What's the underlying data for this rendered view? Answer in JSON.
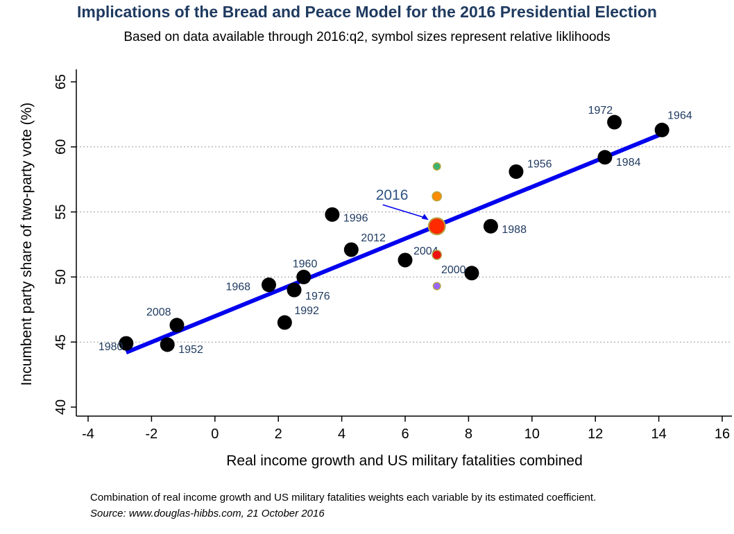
{
  "chart_data": {
    "type": "scatter",
    "title": "Implications of the Bread and Peace Model for the 2016 Presidential Election",
    "subtitle": "Based on data available through 2016:q2, symbol sizes represent relative liklihoods",
    "xlabel": "Real income growth and US military fatalities combined",
    "ylabel": "Incumbent party share of two-party vote (%)",
    "xlim": [
      -4,
      16
    ],
    "ylim": [
      40,
      65
    ],
    "xticks": [
      -4,
      -2,
      0,
      2,
      4,
      6,
      8,
      10,
      12,
      14,
      16
    ],
    "yticks": [
      40,
      45,
      50,
      55,
      60,
      65
    ],
    "gridlines_y": [
      45,
      50,
      55,
      60
    ],
    "points": [
      {
        "label": "1980",
        "x": -2.8,
        "y": 44.9
      },
      {
        "label": "1952",
        "x": -1.5,
        "y": 44.8
      },
      {
        "label": "2008",
        "x": -1.2,
        "y": 46.3
      },
      {
        "label": "1968",
        "x": 1.7,
        "y": 49.4
      },
      {
        "label": "1992",
        "x": 2.2,
        "y": 46.5
      },
      {
        "label": "1976",
        "x": 2.5,
        "y": 49.0
      },
      {
        "label": "1960",
        "x": 2.8,
        "y": 50.0
      },
      {
        "label": "1996",
        "x": 3.7,
        "y": 54.8
      },
      {
        "label": "2012",
        "x": 4.3,
        "y": 52.1
      },
      {
        "label": "2004",
        "x": 6.0,
        "y": 51.3
      },
      {
        "label": "2000",
        "x": 8.1,
        "y": 50.3
      },
      {
        "label": "1988",
        "x": 8.7,
        "y": 53.9
      },
      {
        "label": "1956",
        "x": 9.5,
        "y": 58.1
      },
      {
        "label": "1972",
        "x": 12.6,
        "y": 61.9
      },
      {
        "label": "1984",
        "x": 12.3,
        "y": 59.2
      },
      {
        "label": "1964",
        "x": 14.1,
        "y": 61.3
      }
    ],
    "fit_line": {
      "x": [
        -2.8,
        14.1
      ],
      "y": [
        44.2,
        61.0
      ],
      "color": "#0000ee"
    },
    "forecast": {
      "label": "2016",
      "x": 7.0,
      "y": 53.9,
      "distribution": [
        {
          "y": 58.5,
          "weight": 0.25,
          "color": "#3cb371"
        },
        {
          "y": 56.2,
          "weight": 0.4,
          "color": "#ff8c00"
        },
        {
          "y": 53.9,
          "weight": 1.0,
          "color": "#ff2a00"
        },
        {
          "y": 51.7,
          "weight": 0.4,
          "color": "#ee1111"
        },
        {
          "y": 49.3,
          "weight": 0.25,
          "color": "#9966ff"
        }
      ]
    },
    "grid": true,
    "legend": "none"
  },
  "notes": {
    "line1": "Combination of real income growth and US military fatalities weights each variable by its estimated coefficient.",
    "line2": "Source: www.douglas-hibbs.com, 21 October 2016"
  }
}
